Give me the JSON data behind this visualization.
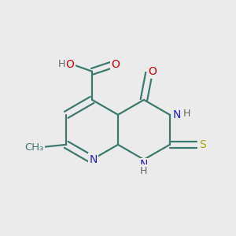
{
  "bg_color": "#ebebeb",
  "bond_color": "#3d7a6e",
  "atom_colors": {
    "N": "#2020cc",
    "O": "#cc0000",
    "S": "#aaaa00",
    "H": "#666666"
  },
  "font_size": 10,
  "bond_width": 1.6
}
